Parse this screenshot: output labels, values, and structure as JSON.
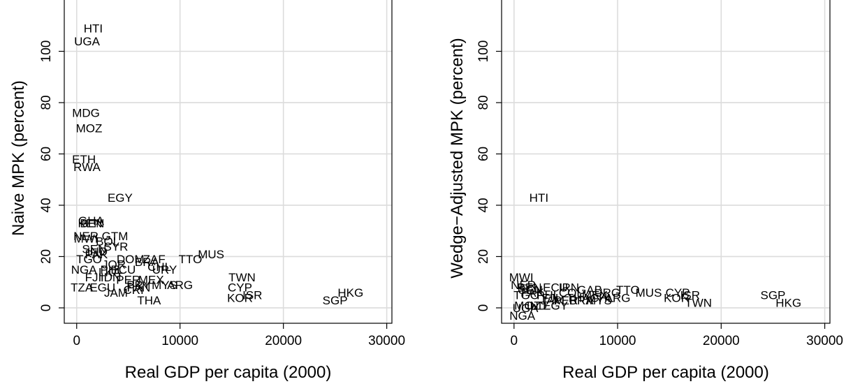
{
  "chart_data": [
    {
      "type": "scatter",
      "title": "",
      "xlabel": "Real GDP per capita (2000)",
      "ylabel": "Naive MPK (percent)",
      "xlim": [
        -1200,
        30500
      ],
      "ylim": [
        -6,
        120
      ],
      "xticks": [
        0,
        10000,
        20000,
        30000
      ],
      "xtick_labels": [
        "0",
        "10000",
        "20000",
        "30000"
      ],
      "yticks": [
        0,
        20,
        40,
        60,
        80,
        100
      ],
      "ytick_labels": [
        "0",
        "20",
        "40",
        "60",
        "80",
        "100"
      ],
      "grid": true,
      "color": "#000000",
      "grid_color": "#dcdcdc",
      "points": [
        {
          "label": "HTI",
          "x": 1600,
          "y": 109
        },
        {
          "label": "UGA",
          "x": 1000,
          "y": 104
        },
        {
          "label": "MDG",
          "x": 900,
          "y": 76
        },
        {
          "label": "MOZ",
          "x": 1200,
          "y": 70
        },
        {
          "label": "ETH",
          "x": 700,
          "y": 58
        },
        {
          "label": "RWA",
          "x": 1000,
          "y": 55
        },
        {
          "label": "EGY",
          "x": 4200,
          "y": 43
        },
        {
          "label": "GHA",
          "x": 1400,
          "y": 34
        },
        {
          "label": "BEN",
          "x": 1500,
          "y": 33
        },
        {
          "label": "KEN",
          "x": 1300,
          "y": 33
        },
        {
          "label": "NER",
          "x": 900,
          "y": 28
        },
        {
          "label": "GTM",
          "x": 3700,
          "y": 28
        },
        {
          "label": "MWI",
          "x": 900,
          "y": 27
        },
        {
          "label": "BOL",
          "x": 3000,
          "y": 26
        },
        {
          "label": "SYR",
          "x": 3800,
          "y": 24
        },
        {
          "label": "SEN",
          "x": 1700,
          "y": 23
        },
        {
          "label": "IND",
          "x": 2000,
          "y": 22
        },
        {
          "label": "PAK",
          "x": 1900,
          "y": 21
        },
        {
          "label": "TGO",
          "x": 1200,
          "y": 19
        },
        {
          "label": "DOM",
          "x": 5200,
          "y": 19
        },
        {
          "label": "ZAF",
          "x": 7500,
          "y": 19
        },
        {
          "label": "BRA",
          "x": 6800,
          "y": 18
        },
        {
          "label": "TTO",
          "x": 11000,
          "y": 19
        },
        {
          "label": "MUS",
          "x": 13000,
          "y": 21
        },
        {
          "label": "JOR",
          "x": 3600,
          "y": 17
        },
        {
          "label": "CHL",
          "x": 8000,
          "y": 16
        },
        {
          "label": "URY",
          "x": 8500,
          "y": 15
        },
        {
          "label": "NGA",
          "x": 700,
          "y": 15
        },
        {
          "label": "PHL",
          "x": 3400,
          "y": 15
        },
        {
          "label": "ECU",
          "x": 4500,
          "y": 15
        },
        {
          "label": "LKA",
          "x": 3200,
          "y": 14
        },
        {
          "label": "FJI",
          "x": 1600,
          "y": 12
        },
        {
          "label": "IDN",
          "x": 3300,
          "y": 12
        },
        {
          "label": "MEX",
          "x": 7200,
          "y": 11
        },
        {
          "label": "PER",
          "x": 5000,
          "y": 11
        },
        {
          "label": "MYS",
          "x": 8500,
          "y": 9
        },
        {
          "label": "ARG",
          "x": 10000,
          "y": 9
        },
        {
          "label": "PRY",
          "x": 6000,
          "y": 9
        },
        {
          "label": "TWN",
          "x": 16000,
          "y": 12
        },
        {
          "label": "CYP",
          "x": 15800,
          "y": 8
        },
        {
          "label": "ISR",
          "x": 17000,
          "y": 5
        },
        {
          "label": "KOR",
          "x": 15800,
          "y": 4
        },
        {
          "label": "TZA",
          "x": 500,
          "y": 8
        },
        {
          "label": "EGU",
          "x": 2500,
          "y": 8
        },
        {
          "label": "JAM",
          "x": 3800,
          "y": 6
        },
        {
          "label": "CRI",
          "x": 5500,
          "y": 7
        },
        {
          "label": "THA",
          "x": 7000,
          "y": 3
        },
        {
          "label": "PAN",
          "x": 6000,
          "y": 8
        },
        {
          "label": "HKG",
          "x": 26500,
          "y": 6
        },
        {
          "label": "SGP",
          "x": 25000,
          "y": 3
        }
      ]
    },
    {
      "type": "scatter",
      "title": "",
      "xlabel": "Real GDP per capita (2000)",
      "ylabel": "Wedge−Adjusted MPK (percent)",
      "xlim": [
        -1200,
        30500
      ],
      "ylim": [
        -6,
        120
      ],
      "xticks": [
        0,
        10000,
        20000,
        30000
      ],
      "xtick_labels": [
        "0",
        "10000",
        "20000",
        "30000"
      ],
      "yticks": [
        0,
        20,
        40,
        60,
        80,
        100
      ],
      "ytick_labels": [
        "0",
        "20",
        "40",
        "60",
        "80",
        "100"
      ],
      "grid": true,
      "color": "#000000",
      "grid_color": "#dcdcdc",
      "points": [
        {
          "label": "HTI",
          "x": 2400,
          "y": 43
        },
        {
          "label": "MWI",
          "x": 700,
          "y": 12
        },
        {
          "label": "NER",
          "x": 900,
          "y": 9
        },
        {
          "label": "BEN",
          "x": 1500,
          "y": 8
        },
        {
          "label": "ECU",
          "x": 4000,
          "y": 8
        },
        {
          "label": "IRN",
          "x": 5300,
          "y": 8
        },
        {
          "label": "GAB",
          "x": 7300,
          "y": 7
        },
        {
          "label": "TTO",
          "x": 11000,
          "y": 7
        },
        {
          "label": "URG",
          "x": 9000,
          "y": 6
        },
        {
          "label": "MUS",
          "x": 13000,
          "y": 6
        },
        {
          "label": "CYP",
          "x": 15800,
          "y": 6
        },
        {
          "label": "KOR",
          "x": 15700,
          "y": 4
        },
        {
          "label": "ISR",
          "x": 17000,
          "y": 5
        },
        {
          "label": "TWN",
          "x": 17800,
          "y": 2
        },
        {
          "label": "SGP",
          "x": 25000,
          "y": 5
        },
        {
          "label": "HKG",
          "x": 26500,
          "y": 2
        },
        {
          "label": "PAK",
          "x": 1800,
          "y": 6
        },
        {
          "label": "SEN",
          "x": 1600,
          "y": 7
        },
        {
          "label": "TGO",
          "x": 1200,
          "y": 5
        },
        {
          "label": "FJI",
          "x": 3500,
          "y": 4
        },
        {
          "label": "PHL",
          "x": 3300,
          "y": 5
        },
        {
          "label": "MEX",
          "x": 7800,
          "y": 5
        },
        {
          "label": "CHL",
          "x": 8500,
          "y": 4
        },
        {
          "label": "ARG",
          "x": 10000,
          "y": 4
        },
        {
          "label": "BRA",
          "x": 6500,
          "y": 3
        },
        {
          "label": "PER",
          "x": 5000,
          "y": 3
        },
        {
          "label": "JAM",
          "x": 3700,
          "y": 3
        },
        {
          "label": "THA",
          "x": 6200,
          "y": 4
        },
        {
          "label": "MYS",
          "x": 8200,
          "y": 3
        },
        {
          "label": "COL",
          "x": 5500,
          "y": 6
        },
        {
          "label": "UGA",
          "x": 1100,
          "y": 0
        },
        {
          "label": "MOZ",
          "x": 1300,
          "y": 1
        },
        {
          "label": "IND",
          "x": 2200,
          "y": 1
        },
        {
          "label": "EGY",
          "x": 4000,
          "y": 1
        },
        {
          "label": "NGA",
          "x": 800,
          "y": -3
        }
      ]
    }
  ]
}
